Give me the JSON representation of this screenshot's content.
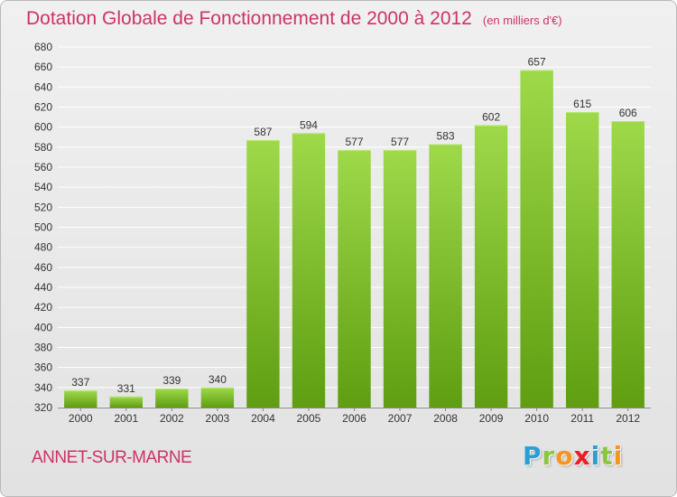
{
  "header": {
    "title": "Dotation Globale de Fonctionnement de 2000 à 2012",
    "unit": "(en milliers d'€)"
  },
  "footer": {
    "commune": "ANNET-SUR-MARNE",
    "logo_letters": [
      "P",
      "r",
      "o",
      "x",
      "i",
      "t",
      "i"
    ],
    "logo_colors": [
      "#2a9fd6",
      "#8cc63f",
      "#f7941d",
      "#ed1c24",
      "#2a9fd6",
      "#8cc63f",
      "#f7941d"
    ]
  },
  "colors": {
    "bar_top": "#9ed94a",
    "bar_bottom": "#5e9e10",
    "title": "#cc3366",
    "grid": "#ffffff",
    "axis_text": "#333333"
  },
  "chart_data": {
    "type": "bar",
    "categories": [
      "2000",
      "2001",
      "2002",
      "2003",
      "2004",
      "2005",
      "2006",
      "2007",
      "2008",
      "2009",
      "2010",
      "2011",
      "2012"
    ],
    "values": [
      337,
      331,
      339,
      340,
      587,
      594,
      577,
      577,
      583,
      602,
      657,
      615,
      606
    ],
    "ylim": [
      320,
      680
    ],
    "ytick_step": 20,
    "grid": true
  }
}
